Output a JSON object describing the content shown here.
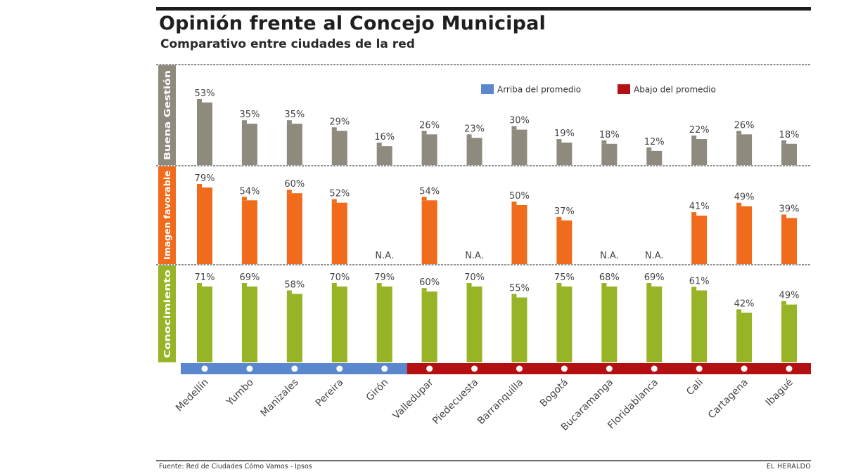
{
  "header": {
    "title": "Opinión frente al Concejo Municipal",
    "subtitle": "Comparativo entre ciudades de la red"
  },
  "footer": {
    "source": "Fuente: Red de Ciudades Cómo Vamos - Ipsos",
    "brand": "EL HERALDO"
  },
  "colors": {
    "buena_gestion": "#8e8a7e",
    "imagen_favorable": "#f06b1c",
    "conocimiento": "#97b326",
    "arriba": "#5b87cf",
    "abajo": "#b40f12"
  },
  "chart_data": {
    "type": "bar",
    "title": "Opinión frente al Concejo Municipal",
    "subtitle": "Comparativo entre ciudades de la red",
    "categories": [
      "Medellín",
      "Yumbo",
      "Manizales",
      "Pereira",
      "Girón",
      "Valledupar",
      "Piedecuesta",
      "Barranquilla",
      "Bogotá",
      "Bucaramanga",
      "Floridablanca",
      "Cali",
      "Cartagena",
      "Ibagué"
    ],
    "series": [
      {
        "name": "Buena Gestión",
        "values": [
          53,
          35,
          35,
          29,
          16,
          26,
          23,
          30,
          19,
          18,
          12,
          22,
          26,
          18
        ],
        "labels": [
          "53%",
          "35%",
          "35%",
          "29%",
          "16%",
          "26%",
          "23%",
          "30%",
          "19%",
          "18%",
          "12%",
          "22%",
          "26%",
          "18%"
        ]
      },
      {
        "name": "Imagen favorable",
        "values": [
          79,
          54,
          60,
          52,
          null,
          54,
          null,
          50,
          37,
          null,
          null,
          41,
          49,
          39
        ],
        "labels": [
          "79%",
          "54%",
          "60%",
          "52%",
          "N.A.",
          "54%",
          "N.A.",
          "50%",
          "37%",
          "N.A.",
          "N.A.",
          "41%",
          "49%",
          "39%"
        ]
      },
      {
        "name": "Conocimiento",
        "values": [
          71,
          69,
          58,
          70,
          79,
          60,
          70,
          55,
          75,
          68,
          69,
          61,
          42,
          49
        ],
        "labels": [
          "71%",
          "69%",
          "58%",
          "70%",
          "79%",
          "60%",
          "70%",
          "55%",
          "75%",
          "68%",
          "69%",
          "61%",
          "42%",
          "49%"
        ]
      }
    ],
    "panel_labels": [
      "Buena Gestión",
      "Imagen favorable",
      "Conocimiento"
    ],
    "group": [
      "arriba",
      "arriba",
      "arriba",
      "arriba",
      "arriba",
      "abajo",
      "abajo",
      "abajo",
      "abajo",
      "abajo",
      "abajo",
      "abajo",
      "abajo",
      "abajo"
    ],
    "legend": [
      {
        "key": "arriba",
        "label": "Arriba del promedio"
      },
      {
        "key": "abajo",
        "label": "Abajo del promedio"
      }
    ],
    "legend_position": "top-right",
    "ylim": [
      0,
      100
    ],
    "grid": false,
    "xlabel": "",
    "ylabel": ""
  }
}
